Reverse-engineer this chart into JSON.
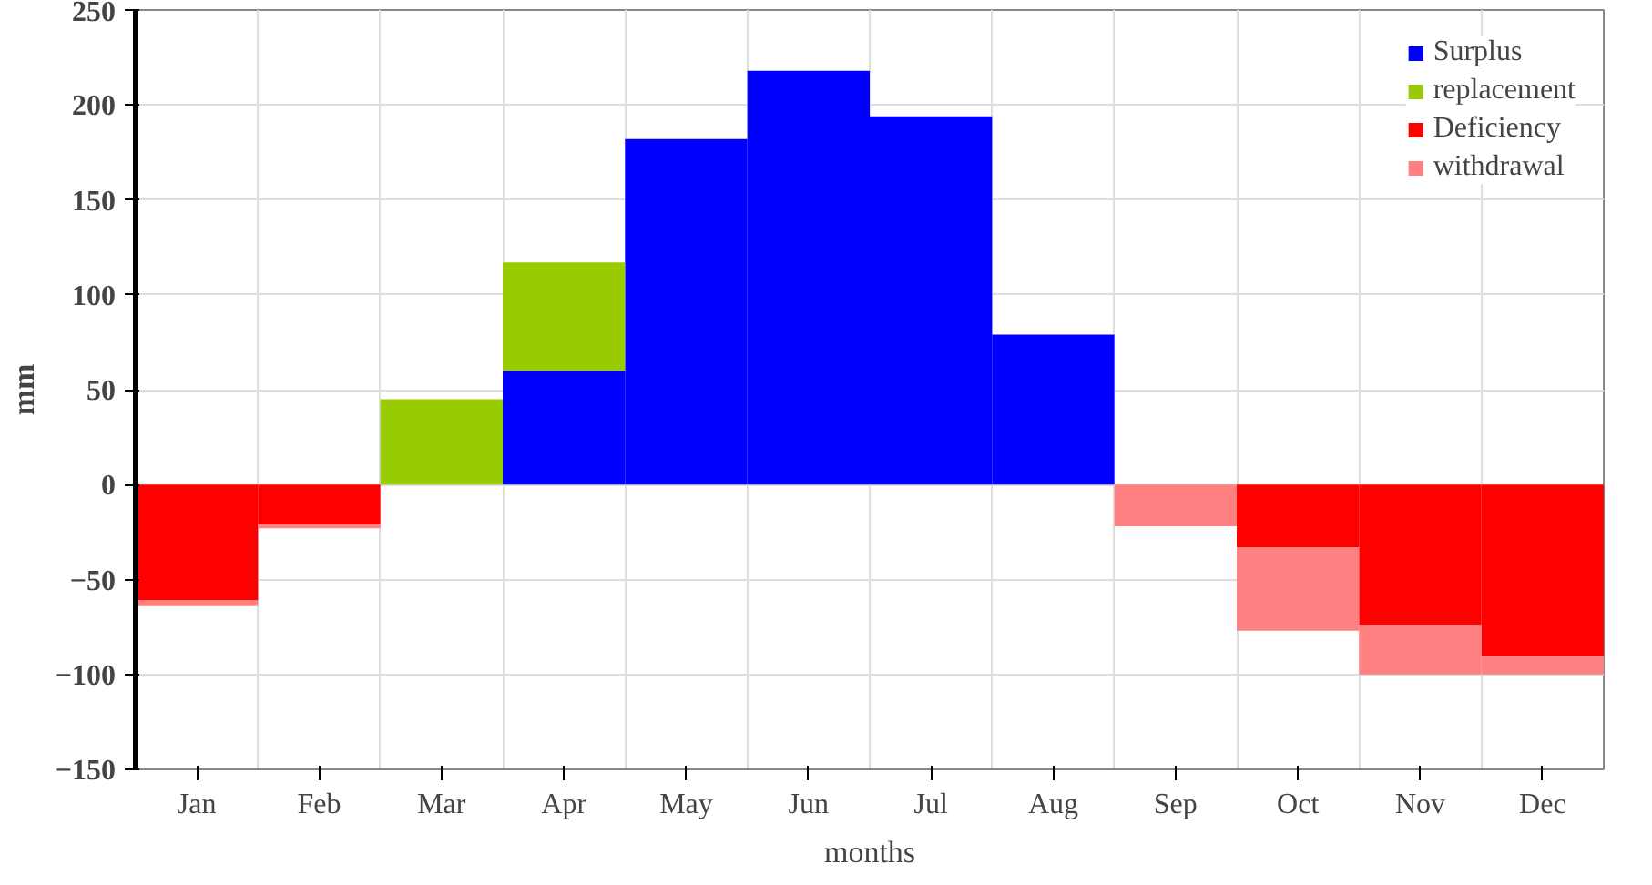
{
  "chart_data": {
    "type": "bar",
    "stacked": true,
    "xlabel": "months",
    "ylabel": "mm",
    "categories": [
      "Jan",
      "Feb",
      "Mar",
      "Apr",
      "May",
      "Jun",
      "Jul",
      "Aug",
      "Sep",
      "Oct",
      "Nov",
      "Dec"
    ],
    "series": [
      {
        "name": "Surplus",
        "color": "#0000ff",
        "values": [
          null,
          null,
          null,
          60,
          182,
          218,
          194,
          79,
          null,
          null,
          null,
          null
        ]
      },
      {
        "name": "replacement",
        "color": "#99cc00",
        "values": [
          null,
          null,
          45,
          57,
          null,
          null,
          null,
          null,
          null,
          null,
          null,
          null
        ]
      },
      {
        "name": "Deficiency",
        "color": "#ff0000",
        "values": [
          -61,
          -21,
          null,
          null,
          null,
          null,
          null,
          null,
          null,
          -33,
          -74,
          -90
        ]
      },
      {
        "name": "withdrawal",
        "color": "#ff8080",
        "values": [
          -3,
          -2,
          null,
          null,
          null,
          null,
          null,
          null,
          -22,
          -44,
          -26,
          -10
        ]
      }
    ],
    "ylim": [
      -150,
      250
    ],
    "yticks": [
      -150,
      -100,
      -50,
      0,
      50,
      100,
      150,
      200,
      250
    ],
    "grid": true,
    "legend": "top right"
  }
}
